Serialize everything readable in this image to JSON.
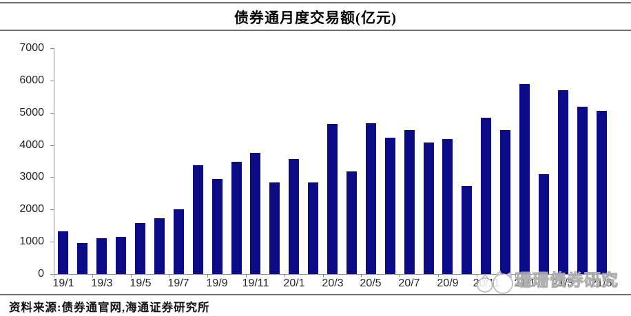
{
  "page": {
    "title": "债券通月度交易额(亿元)",
    "source_note": "资料来源:债券通官网,海通证券研究所",
    "watermark_text": "珊珊债券研究"
  },
  "colors": {
    "bar": "#0b0b85",
    "axis": "#8c8c8c",
    "tick_label": "#262626",
    "rule": "#6f6f6f",
    "watermark": "#b5b5b5"
  },
  "chart_data": {
    "type": "bar",
    "title": "债券通月度交易额(亿元)",
    "xlabel": "",
    "ylabel": "",
    "ylim": [
      0,
      7000
    ],
    "ytick_interval": 1000,
    "yticks": [
      0,
      1000,
      2000,
      3000,
      4000,
      5000,
      6000,
      7000
    ],
    "grid": false,
    "legend": "none",
    "categories": [
      "19/1",
      "19/2",
      "19/3",
      "19/4",
      "19/5",
      "19/6",
      "19/7",
      "19/8",
      "19/9",
      "19/10",
      "19/11",
      "19/12",
      "20/1",
      "20/2",
      "20/3",
      "20/4",
      "20/5",
      "20/6",
      "20/7",
      "20/8",
      "20/9",
      "20/10",
      "20/11",
      "20/12",
      "21/1",
      "21/2",
      "21/3",
      "21/4",
      "21/5"
    ],
    "values": [
      1320,
      960,
      1110,
      1150,
      1580,
      1720,
      2010,
      3380,
      2950,
      3480,
      3750,
      2840,
      3570,
      2840,
      4650,
      3180,
      4680,
      4220,
      4450,
      4080,
      4180,
      2740,
      4850,
      4470,
      5880,
      3100,
      5700,
      5190,
      5060
    ],
    "x_tick_labels": [
      "19/1",
      "19/3",
      "19/5",
      "19/7",
      "19/9",
      "19/11",
      "20/1",
      "20/3",
      "20/5",
      "20/7",
      "20/9",
      "20/11",
      "21/1",
      "21/3",
      "21/5"
    ]
  }
}
